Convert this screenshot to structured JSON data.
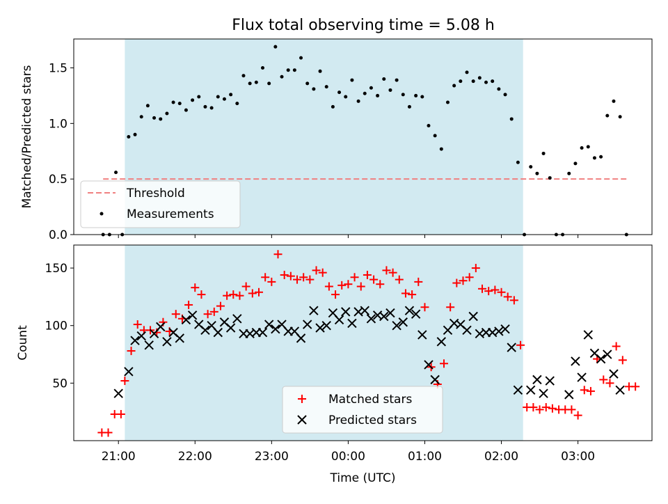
{
  "title": "Flux total observing time = 5.08 h",
  "colors": {
    "span": "#add8e6",
    "threshold": "#f08080",
    "matched": "#ff0000",
    "predicted": "#000000",
    "measurement": "#000000"
  },
  "chart_data": [
    {
      "type": "scatter",
      "panel": "top",
      "ylabel": "Matched/Predicted stars",
      "xlabel": "",
      "ylim": [
        0,
        1.76
      ],
      "yticks": [
        0.0,
        0.5,
        1.0,
        1.5
      ],
      "ytick_labels": [
        "0.0",
        "0.5",
        "1.0",
        "1.5"
      ],
      "xlim": [
        "20:25",
        "03:58"
      ],
      "highlight_span": [
        "21:05",
        "02:17"
      ],
      "threshold": {
        "name": "Threshold",
        "value": 0.5,
        "x": [
          "20:48",
          "03:38"
        ],
        "style": "dashed"
      },
      "legend": {
        "placement": "lower-left",
        "entries": [
          "Threshold",
          "Measurements"
        ]
      },
      "series": [
        {
          "name": "Measurements",
          "marker": "dot",
          "points": [
            [
              "20:48",
              0.0
            ],
            [
              "20:53",
              0.0
            ],
            [
              "20:58",
              0.56
            ],
            [
              "21:03",
              0.0
            ],
            [
              "21:08",
              0.88
            ],
            [
              "21:13",
              0.9
            ],
            [
              "21:18",
              1.06
            ],
            [
              "21:23",
              1.16
            ],
            [
              "21:28",
              1.05
            ],
            [
              "21:33",
              1.04
            ],
            [
              "21:38",
              1.09
            ],
            [
              "21:43",
              1.19
            ],
            [
              "21:48",
              1.18
            ],
            [
              "21:53",
              1.12
            ],
            [
              "21:58",
              1.21
            ],
            [
              "22:03",
              1.24
            ],
            [
              "22:08",
              1.15
            ],
            [
              "22:13",
              1.14
            ],
            [
              "22:18",
              1.24
            ],
            [
              "22:23",
              1.22
            ],
            [
              "22:28",
              1.26
            ],
            [
              "22:33",
              1.18
            ],
            [
              "22:38",
              1.43
            ],
            [
              "22:43",
              1.36
            ],
            [
              "22:48",
              1.37
            ],
            [
              "22:53",
              1.5
            ],
            [
              "22:58",
              1.36
            ],
            [
              "23:03",
              1.69
            ],
            [
              "23:08",
              1.42
            ],
            [
              "23:13",
              1.48
            ],
            [
              "23:18",
              1.48
            ],
            [
              "23:23",
              1.59
            ],
            [
              "23:28",
              1.36
            ],
            [
              "23:33",
              1.31
            ],
            [
              "23:38",
              1.47
            ],
            [
              "23:43",
              1.33
            ],
            [
              "23:48",
              1.15
            ],
            [
              "23:53",
              1.28
            ],
            [
              "23:58",
              1.24
            ],
            [
              "00:03",
              1.39
            ],
            [
              "00:08",
              1.2
            ],
            [
              "00:13",
              1.27
            ],
            [
              "00:18",
              1.32
            ],
            [
              "00:23",
              1.25
            ],
            [
              "00:28",
              1.4
            ],
            [
              "00:33",
              1.3
            ],
            [
              "00:38",
              1.39
            ],
            [
              "00:43",
              1.26
            ],
            [
              "00:48",
              1.15
            ],
            [
              "00:53",
              1.25
            ],
            [
              "00:58",
              1.24
            ],
            [
              "01:03",
              0.98
            ],
            [
              "01:08",
              0.89
            ],
            [
              "01:13",
              0.77
            ],
            [
              "01:18",
              1.19
            ],
            [
              "01:23",
              1.34
            ],
            [
              "01:28",
              1.38
            ],
            [
              "01:33",
              1.46
            ],
            [
              "01:38",
              1.38
            ],
            [
              "01:43",
              1.41
            ],
            [
              "01:48",
              1.37
            ],
            [
              "01:53",
              1.38
            ],
            [
              "01:58",
              1.31
            ],
            [
              "02:03",
              1.26
            ],
            [
              "02:08",
              1.04
            ],
            [
              "02:13",
              0.65
            ],
            [
              "02:18",
              0.0
            ],
            [
              "02:23",
              0.61
            ],
            [
              "02:28",
              0.55
            ],
            [
              "02:33",
              0.73
            ],
            [
              "02:38",
              0.51
            ],
            [
              "02:43",
              0.0
            ],
            [
              "02:48",
              0.0
            ],
            [
              "02:53",
              0.55
            ],
            [
              "02:58",
              0.64
            ],
            [
              "03:03",
              0.78
            ],
            [
              "03:08",
              0.79
            ],
            [
              "03:13",
              0.69
            ],
            [
              "03:18",
              0.7
            ],
            [
              "03:23",
              1.07
            ],
            [
              "03:28",
              1.2
            ],
            [
              "03:33",
              1.06
            ],
            [
              "03:38",
              0.0
            ]
          ]
        }
      ]
    },
    {
      "type": "scatter",
      "panel": "bottom",
      "ylabel": "Count",
      "xlabel": "Time (UTC)",
      "ylim": [
        0,
        170
      ],
      "yticks": [
        50,
        100,
        150
      ],
      "ytick_labels": [
        "50",
        "100",
        "150"
      ],
      "xlim": [
        "20:25",
        "03:58"
      ],
      "xticks": [
        "21:00",
        "22:00",
        "23:00",
        "00:00",
        "01:00",
        "02:00",
        "03:00"
      ],
      "xtick_labels": [
        "21:00",
        "22:00",
        "23:00",
        "00:00",
        "01:00",
        "02:00",
        "03:00"
      ],
      "highlight_span": [
        "21:05",
        "02:17"
      ],
      "legend": {
        "placement": "lower-center",
        "entries": [
          "Matched stars",
          "Predicted stars"
        ]
      },
      "series": [
        {
          "name": "Matched stars",
          "marker": "plus",
          "points": [
            [
              "20:47",
              7
            ],
            [
              "20:52",
              7
            ],
            [
              "20:57",
              23
            ],
            [
              "21:02",
              23
            ],
            [
              "21:05",
              52
            ],
            [
              "21:10",
              78
            ],
            [
              "21:15",
              101
            ],
            [
              "21:20",
              96
            ],
            [
              "21:25",
              96
            ],
            [
              "21:30",
              94
            ],
            [
              "21:35",
              103
            ],
            [
              "21:40",
              95
            ],
            [
              "21:45",
              110
            ],
            [
              "21:50",
              106
            ],
            [
              "21:55",
              118
            ],
            [
              "22:00",
              133
            ],
            [
              "22:05",
              127
            ],
            [
              "22:10",
              110
            ],
            [
              "22:15",
              112
            ],
            [
              "22:20",
              117
            ],
            [
              "22:25",
              126
            ],
            [
              "22:30",
              127
            ],
            [
              "22:35",
              126
            ],
            [
              "22:40",
              134
            ],
            [
              "22:45",
              128
            ],
            [
              "22:50",
              129
            ],
            [
              "22:55",
              142
            ],
            [
              "23:00",
              138
            ],
            [
              "23:05",
              162
            ],
            [
              "23:10",
              144
            ],
            [
              "23:15",
              143
            ],
            [
              "23:20",
              140
            ],
            [
              "23:25",
              142
            ],
            [
              "23:30",
              140
            ],
            [
              "23:35",
              148
            ],
            [
              "23:40",
              146
            ],
            [
              "23:45",
              134
            ],
            [
              "23:50",
              127
            ],
            [
              "23:55",
              135
            ],
            [
              "00:00",
              136
            ],
            [
              "00:05",
              142
            ],
            [
              "00:10",
              134
            ],
            [
              "00:15",
              144
            ],
            [
              "00:20",
              140
            ],
            [
              "00:25",
              136
            ],
            [
              "00:30",
              148
            ],
            [
              "00:35",
              146
            ],
            [
              "00:40",
              140
            ],
            [
              "00:45",
              128
            ],
            [
              "00:50",
              127
            ],
            [
              "00:55",
              138
            ],
            [
              "01:00",
              116
            ],
            [
              "01:05",
              64
            ],
            [
              "01:10",
              49
            ],
            [
              "01:15",
              67
            ],
            [
              "01:20",
              116
            ],
            [
              "01:25",
              137
            ],
            [
              "01:30",
              139
            ],
            [
              "01:35",
              142
            ],
            [
              "01:40",
              150
            ],
            [
              "01:45",
              132
            ],
            [
              "01:50",
              130
            ],
            [
              "01:55",
              131
            ],
            [
              "02:00",
              129
            ],
            [
              "02:05",
              125
            ],
            [
              "02:10",
              122
            ],
            [
              "02:15",
              83
            ],
            [
              "02:20",
              29
            ],
            [
              "02:25",
              29
            ],
            [
              "02:30",
              27
            ],
            [
              "02:35",
              29
            ],
            [
              "02:40",
              28
            ],
            [
              "02:45",
              27
            ],
            [
              "02:50",
              27
            ],
            [
              "02:55",
              27
            ],
            [
              "03:00",
              22
            ],
            [
              "03:05",
              44
            ],
            [
              "03:10",
              43
            ],
            [
              "03:15",
              71
            ],
            [
              "03:20",
              53
            ],
            [
              "03:25",
              50
            ],
            [
              "03:30",
              82
            ],
            [
              "03:35",
              70
            ],
            [
              "03:40",
              47
            ],
            [
              "03:45",
              47
            ]
          ]
        },
        {
          "name": "Predicted stars",
          "marker": "x",
          "points": [
            [
              "21:00",
              41
            ],
            [
              "21:08",
              60
            ],
            [
              "21:13",
              87
            ],
            [
              "21:18",
              91
            ],
            [
              "21:24",
              83
            ],
            [
              "21:28",
              93
            ],
            [
              "21:33",
              99
            ],
            [
              "21:38",
              86
            ],
            [
              "21:43",
              94
            ],
            [
              "21:48",
              89
            ],
            [
              "21:53",
              105
            ],
            [
              "21:58",
              109
            ],
            [
              "22:03",
              101
            ],
            [
              "22:08",
              96
            ],
            [
              "22:13",
              100
            ],
            [
              "22:18",
              94
            ],
            [
              "22:23",
              103
            ],
            [
              "22:28",
              98
            ],
            [
              "22:33",
              106
            ],
            [
              "22:38",
              93
            ],
            [
              "22:43",
              93
            ],
            [
              "22:48",
              94
            ],
            [
              "22:53",
              94
            ],
            [
              "22:58",
              101
            ],
            [
              "23:03",
              97
            ],
            [
              "23:08",
              101
            ],
            [
              "23:13",
              95
            ],
            [
              "23:18",
              95
            ],
            [
              "23:23",
              89
            ],
            [
              "23:28",
              101
            ],
            [
              "23:33",
              113
            ],
            [
              "23:38",
              98
            ],
            [
              "23:43",
              100
            ],
            [
              "23:48",
              111
            ],
            [
              "23:53",
              105
            ],
            [
              "23:58",
              112
            ],
            [
              "00:03",
              102
            ],
            [
              "00:08",
              112
            ],
            [
              "00:13",
              113
            ],
            [
              "00:18",
              106
            ],
            [
              "00:23",
              109
            ],
            [
              "00:28",
              108
            ],
            [
              "00:33",
              111
            ],
            [
              "00:38",
              100
            ],
            [
              "00:43",
              103
            ],
            [
              "00:48",
              113
            ],
            [
              "00:53",
              110
            ],
            [
              "00:58",
              92
            ],
            [
              "01:03",
              66
            ],
            [
              "01:08",
              53
            ],
            [
              "01:13",
              86
            ],
            [
              "01:18",
              96
            ],
            [
              "01:23",
              102
            ],
            [
              "01:28",
              101
            ],
            [
              "01:33",
              96
            ],
            [
              "01:38",
              108
            ],
            [
              "01:43",
              93
            ],
            [
              "01:48",
              94
            ],
            [
              "01:53",
              94
            ],
            [
              "01:58",
              95
            ],
            [
              "02:03",
              97
            ],
            [
              "02:08",
              81
            ],
            [
              "02:13",
              44
            ],
            [
              "02:23",
              44
            ],
            [
              "02:28",
              53
            ],
            [
              "02:33",
              41
            ],
            [
              "02:38",
              52
            ],
            [
              "02:53",
              40
            ],
            [
              "02:58",
              69
            ],
            [
              "03:03",
              55
            ],
            [
              "03:08",
              92
            ],
            [
              "03:13",
              76
            ],
            [
              "03:18",
              71
            ],
            [
              "03:23",
              75
            ],
            [
              "03:28",
              58
            ],
            [
              "03:33",
              44
            ]
          ]
        }
      ]
    }
  ]
}
